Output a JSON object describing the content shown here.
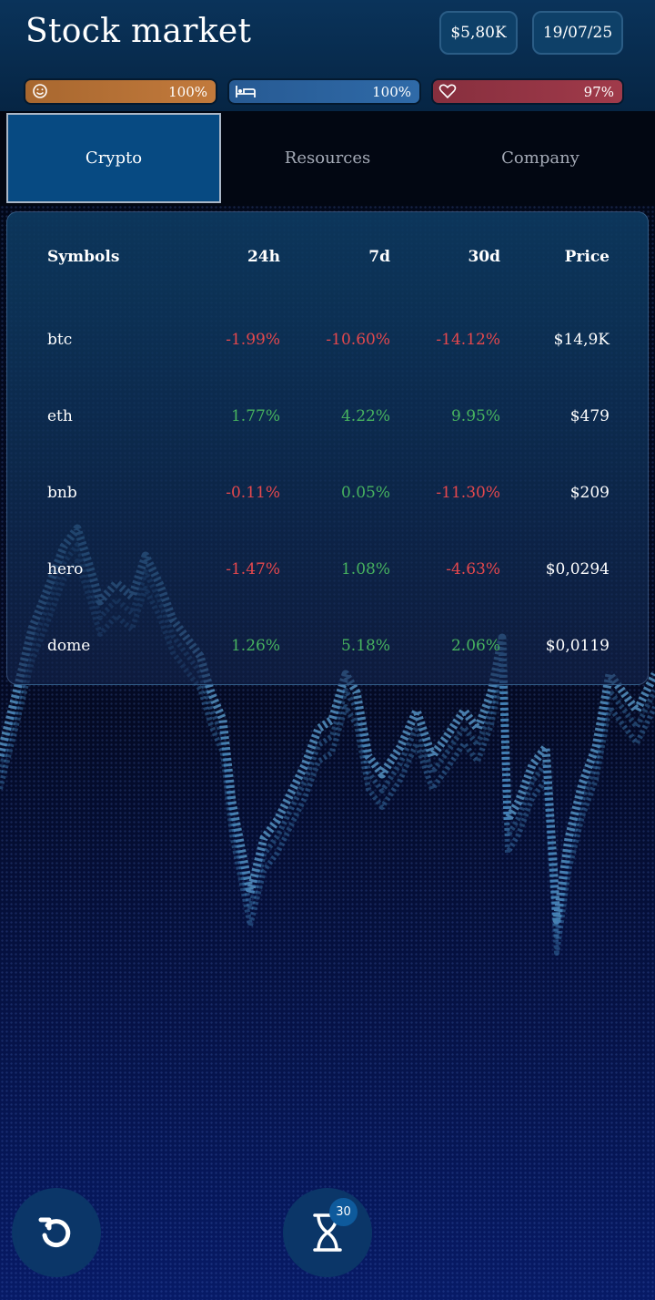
{
  "header": {
    "title": "Stock market",
    "money": "$5,80K",
    "date": "19/07/25"
  },
  "stats": [
    {
      "icon": "smiley-icon",
      "value_label": "100%",
      "level": 1.0,
      "color": "#b8733a"
    },
    {
      "icon": "bed-icon",
      "value_label": "100%",
      "level": 1.0,
      "color": "#2c64a0"
    },
    {
      "icon": "heart-icon",
      "value_label": "97%",
      "level": 0.97,
      "color": "#973646"
    }
  ],
  "tabs": [
    {
      "label": "Crypto",
      "active": true
    },
    {
      "label": "Resources",
      "active": false
    },
    {
      "label": "Company",
      "active": false
    }
  ],
  "table": {
    "headers": {
      "symbol": "Symbols",
      "d24h": "24h",
      "d7d": "7d",
      "d30d": "30d",
      "price": "Price"
    },
    "rows": [
      {
        "symbol": "btc",
        "d24h": "-1.99%",
        "d7d": "-10.60%",
        "d30d": "-14.12%",
        "price": "$14,9K"
      },
      {
        "symbol": "eth",
        "d24h": "1.77%",
        "d7d": "4.22%",
        "d30d": "9.95%",
        "price": "$479"
      },
      {
        "symbol": "bnb",
        "d24h": "-0.11%",
        "d7d": "0.05%",
        "d30d": "-11.30%",
        "price": "$209"
      },
      {
        "symbol": "hero",
        "d24h": "-1.47%",
        "d7d": "1.08%",
        "d30d": "-4.63%",
        "price": "$0,0294"
      },
      {
        "symbol": "dome",
        "d24h": "1.26%",
        "d7d": "5.18%",
        "d30d": "2.06%",
        "price": "$0,0119"
      }
    ]
  },
  "bottom": {
    "undo_icon": "undo-icon",
    "wait_icon": "hourglass-icon",
    "wait_badge": "30"
  },
  "colors": {
    "negative": "#e5484d",
    "positive": "#47b35f",
    "accent": "#074a82"
  }
}
